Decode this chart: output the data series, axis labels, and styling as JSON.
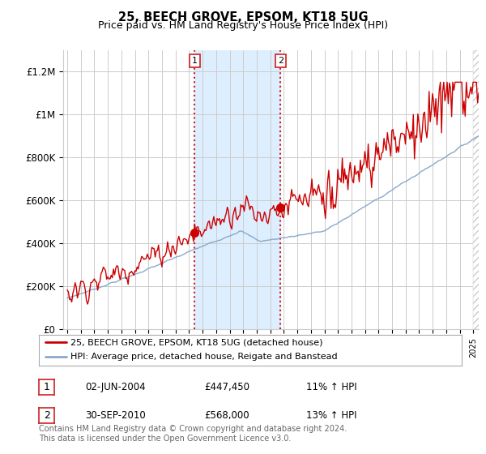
{
  "title": "25, BEECH GROVE, EPSOM, KT18 5UG",
  "subtitle": "Price paid vs. HM Land Registry's House Price Index (HPI)",
  "ylabel_ticks": [
    "£0",
    "£200K",
    "£400K",
    "£600K",
    "£800K",
    "£1M",
    "£1.2M"
  ],
  "ytick_values": [
    0,
    200000,
    400000,
    600000,
    800000,
    1000000,
    1200000
  ],
  "ylim": [
    0,
    1300000
  ],
  "xlim_start": 1994.7,
  "xlim_end": 2025.4,
  "red_line_color": "#cc0000",
  "blue_line_color": "#88aacc",
  "shade_color": "#ddeeff",
  "grid_color": "#cccccc",
  "sale1_x": 2004.42,
  "sale1_price": 447450,
  "sale2_x": 2010.75,
  "sale2_price": 568000,
  "legend_label_red": "25, BEECH GROVE, EPSOM, KT18 5UG (detached house)",
  "legend_label_blue": "HPI: Average price, detached house, Reigate and Banstead",
  "table_rows": [
    {
      "num": "1",
      "date": "02-JUN-2004",
      "price": "£447,450",
      "change": "11% ↑ HPI"
    },
    {
      "num": "2",
      "date": "30-SEP-2010",
      "price": "£568,000",
      "change": "13% ↑ HPI"
    }
  ],
  "footnote": "Contains HM Land Registry data © Crown copyright and database right 2024.\nThis data is licensed under the Open Government Licence v3.0.",
  "bg_color": "#ffffff"
}
